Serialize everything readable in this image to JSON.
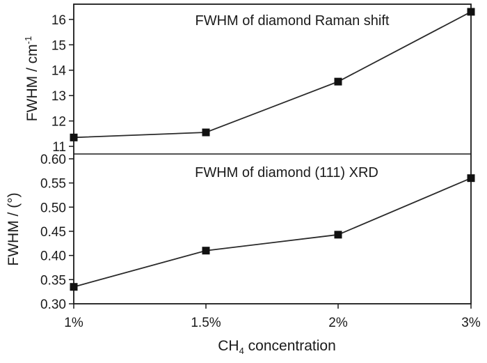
{
  "chart_data": [
    {
      "type": "line",
      "title": "FWHM of diamond Raman shift",
      "ylabel": {
        "main": "FWHM / cm",
        "sup": "-1"
      },
      "categories": [
        "1%",
        "1.5%",
        "2%",
        "3%"
      ],
      "values": [
        11.35,
        11.55,
        13.55,
        16.3
      ],
      "ylim": [
        10.7,
        16.6
      ],
      "yticks": [
        {
          "v": 11,
          "label": "11"
        },
        {
          "v": 12,
          "label": "12"
        },
        {
          "v": 13,
          "label": "13"
        },
        {
          "v": 14,
          "label": "14"
        },
        {
          "v": 15,
          "label": "15"
        },
        {
          "v": 16,
          "label": "16"
        }
      ],
      "grid": false
    },
    {
      "type": "line",
      "title": "FWHM of diamond (111) XRD",
      "ylabel": {
        "main": "FWHM / (°)"
      },
      "categories": [
        "1%",
        "1.5%",
        "2%",
        "3%"
      ],
      "values": [
        0.335,
        0.41,
        0.443,
        0.56
      ],
      "ylim": [
        0.3,
        0.61
      ],
      "yticks": [
        {
          "v": 0.3,
          "label": "0.30"
        },
        {
          "v": 0.35,
          "label": "0.35"
        },
        {
          "v": 0.4,
          "label": "0.40"
        },
        {
          "v": 0.45,
          "label": "0.45"
        },
        {
          "v": 0.5,
          "label": "0.50"
        },
        {
          "v": 0.55,
          "label": "0.55"
        },
        {
          "v": 0.6,
          "label": "0.60"
        }
      ],
      "grid": false
    }
  ],
  "xlabel": {
    "pre": "CH",
    "sub": "4",
    "post": " concentration"
  },
  "colors": {
    "line": "#2a2a2a",
    "marker": "#111111",
    "axis": "#1a1a1a"
  }
}
